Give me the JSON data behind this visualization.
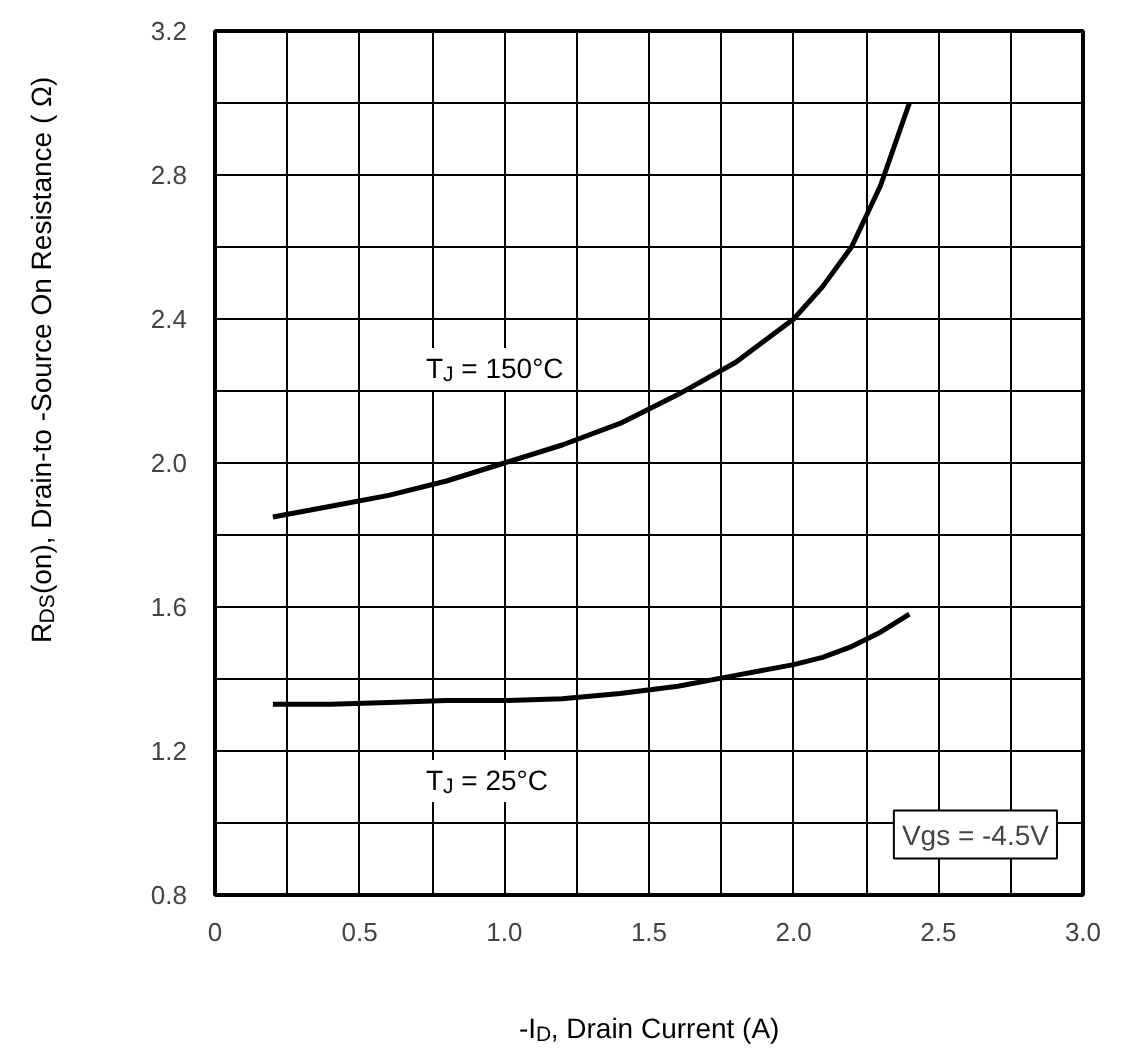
{
  "chart_data": {
    "type": "line",
    "xlabel": "-I$_{D}$, Drain Current (A)",
    "ylabel": "R$_{DS}$(on),  Drain-to -Source On Resistance ( Ω)",
    "series": [
      {
        "color": "#000000",
        "x": [
          0.2,
          0.4,
          0.6,
          0.8,
          1.0,
          1.2,
          1.4,
          1.6,
          1.8,
          2.0,
          2.1,
          2.2,
          2.3,
          2.4
        ],
        "values": [
          1.85,
          1.88,
          1.91,
          1.95,
          2.0,
          2.05,
          2.11,
          2.19,
          2.28,
          2.4,
          2.49,
          2.6,
          2.77,
          3.0
        ]
      },
      {
        "color": "#000000",
        "x": [
          0.2,
          0.4,
          0.6,
          0.8,
          1.0,
          1.2,
          1.4,
          1.6,
          1.8,
          2.0,
          2.1,
          2.2,
          2.3,
          2.4
        ],
        "values": [
          1.33,
          1.33,
          1.335,
          1.34,
          1.34,
          1.345,
          1.36,
          1.38,
          1.41,
          1.44,
          1.46,
          1.49,
          1.53,
          1.58
        ]
      }
    ],
    "annotations": [
      "T$_{J}$ = 150°C",
      "T$_{J}$ = 25°C",
      "Vgs = -4.5V"
    ],
    "xlim": [
      0,
      3.0
    ],
    "ylim": [
      0.8,
      3.2
    ],
    "xticks": [
      0,
      0.5,
      {
        "value": 1,
        "label": "1.0"
      },
      1.5,
      {
        "value": 2,
        "label": "2.0"
      },
      2.5,
      {
        "value": 3,
        "label": "3.0"
      }
    ],
    "yticks": [
      0.8,
      1.2,
      1.6,
      {
        "value": 2,
        "label": "2.0"
      },
      2.4,
      2.8,
      3.2
    ],
    "grid": true,
    "marker": "none",
    "line_style": "solid"
  }
}
